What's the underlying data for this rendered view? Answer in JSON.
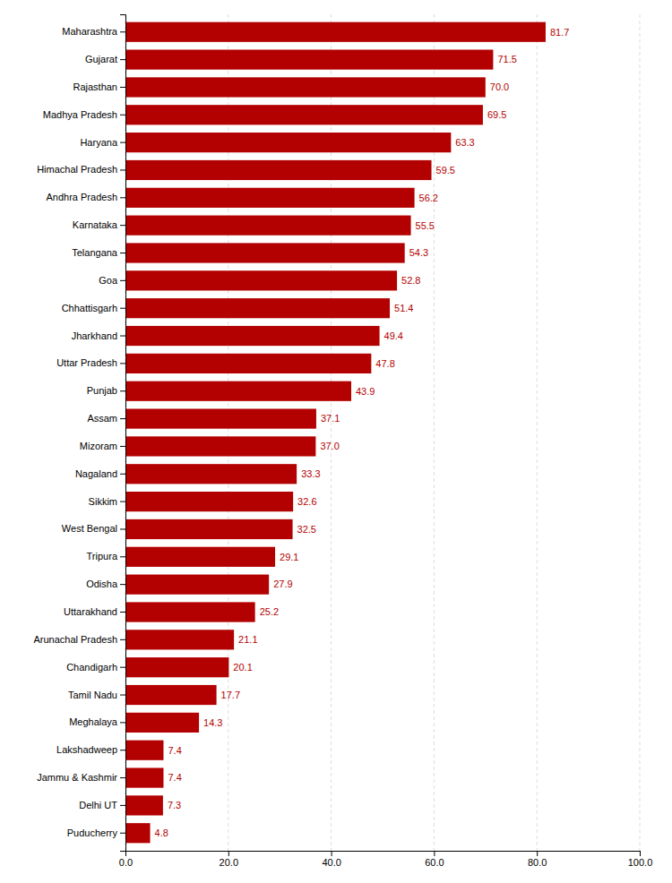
{
  "chart_data": {
    "type": "bar",
    "orientation": "horizontal",
    "categories": [
      "Maharashtra",
      "Gujarat",
      "Rajasthan",
      "Madhya Pradesh",
      "Haryana",
      "Himachal Pradesh",
      "Andhra Pradesh",
      "Karnataka",
      "Telangana",
      "Goa",
      "Chhattisgarh",
      "Jharkhand",
      "Uttar Pradesh",
      "Punjab",
      "Assam",
      "Mizoram",
      "Nagaland",
      "Sikkim",
      "West Bengal",
      "Tripura",
      "Odisha",
      "Uttarakhand",
      "Arunachal Pradesh",
      "Chandigarh",
      "Tamil Nadu",
      "Meghalaya",
      "Lakshadweep",
      "Jammu & Kashmir",
      "Delhi UT",
      "Puducherry"
    ],
    "values": [
      81.7,
      71.5,
      70.0,
      69.5,
      63.3,
      59.5,
      56.2,
      55.5,
      54.3,
      52.8,
      51.4,
      49.4,
      47.8,
      43.9,
      37.1,
      37.0,
      33.3,
      32.6,
      32.5,
      29.1,
      27.9,
      25.2,
      21.1,
      20.1,
      17.7,
      14.3,
      7.4,
      7.4,
      7.3,
      4.8
    ],
    "value_labels": [
      "81.7",
      "71.5",
      "70.0",
      "69.5",
      "63.3",
      "59.5",
      "56.2",
      "55.5",
      "54.3",
      "52.8",
      "51.4",
      "49.4",
      "47.8",
      "43.9",
      "37.1",
      "37.0",
      "33.3",
      "32.6",
      "32.5",
      "29.1",
      "27.9",
      "25.2",
      "21.1",
      "20.1",
      "17.7",
      "14.3",
      "7.4",
      "7.4",
      "7.3",
      "4.8"
    ],
    "color": "#b30000",
    "xlim": [
      0,
      100
    ],
    "xticks": [
      {
        "value": 0,
        "label": "0.0"
      },
      {
        "value": 20,
        "label": "20.0"
      },
      {
        "value": 40,
        "label": "40.0"
      },
      {
        "value": 60,
        "label": "60.0"
      },
      {
        "value": 80,
        "label": "80.0"
      },
      {
        "value": 100,
        "label": "100.0"
      }
    ],
    "grid": true,
    "data_labels": true
  }
}
